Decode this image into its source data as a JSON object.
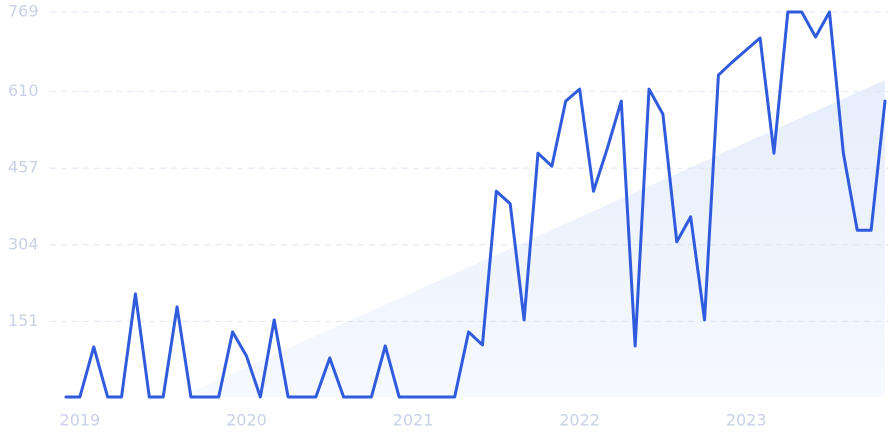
{
  "chart_data": {
    "type": "line",
    "categories": [
      null,
      "2019",
      null,
      null,
      null,
      null,
      null,
      null,
      null,
      null,
      null,
      null,
      null,
      "2020",
      null,
      null,
      null,
      null,
      null,
      null,
      null,
      null,
      null,
      null,
      null,
      "2021",
      null,
      null,
      null,
      null,
      null,
      null,
      null,
      null,
      null,
      null,
      null,
      "2022",
      null,
      null,
      null,
      null,
      null,
      null,
      null,
      null,
      null,
      null,
      null,
      "2023",
      null,
      null,
      null,
      null,
      null,
      null,
      null,
      null,
      null,
      null
    ],
    "values": [
      0,
      0,
      100,
      0,
      0,
      206,
      0,
      0,
      180,
      0,
      0,
      0,
      130,
      82,
      0,
      154,
      0,
      0,
      0,
      78,
      0,
      0,
      0,
      102,
      0,
      0,
      0,
      0,
      0,
      130,
      104,
      411,
      386,
      154,
      487,
      461,
      591,
      615,
      411,
      497,
      591,
      102,
      615,
      565,
      310,
      360,
      154,
      643,
      669,
      693,
      717,
      487,
      769,
      769,
      719,
      769,
      487,
      333,
      333,
      591
    ],
    "color": "#2f5bdc",
    "ylim": [
      0,
      769
    ],
    "yticks": [
      151,
      304,
      457,
      610,
      769
    ],
    "grid": true
  }
}
